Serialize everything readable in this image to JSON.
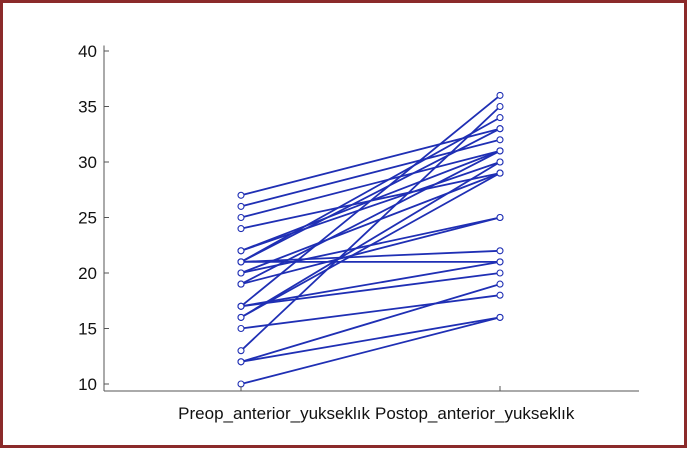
{
  "chart_data": {
    "type": "line",
    "categories": [
      "Preop_anterior_yukseklık",
      "Postop_anterior_yukseklık"
    ],
    "ylim": [
      9.5,
      40.5
    ],
    "yticks": [
      10,
      15,
      20,
      25,
      30,
      35,
      40
    ],
    "grid": false,
    "series_color": "#1f2fb4",
    "marker": "open-circle",
    "series": [
      {
        "values": [
          27,
          33
        ]
      },
      {
        "values": [
          26,
          32
        ]
      },
      {
        "values": [
          25,
          31
        ]
      },
      {
        "values": [
          24,
          29
        ]
      },
      {
        "values": [
          22,
          30
        ]
      },
      {
        "values": [
          22,
          31
        ]
      },
      {
        "values": [
          21,
          33
        ]
      },
      {
        "values": [
          21,
          34
        ]
      },
      {
        "values": [
          21,
          22
        ]
      },
      {
        "values": [
          21,
          21
        ]
      },
      {
        "values": [
          20,
          25
        ]
      },
      {
        "values": [
          20,
          29
        ]
      },
      {
        "values": [
          19,
          31
        ]
      },
      {
        "values": [
          19,
          25
        ]
      },
      {
        "values": [
          17,
          21
        ]
      },
      {
        "values": [
          17,
          20
        ]
      },
      {
        "values": [
          17,
          36
        ]
      },
      {
        "values": [
          16,
          30
        ]
      },
      {
        "values": [
          16,
          29
        ]
      },
      {
        "values": [
          15,
          18
        ]
      },
      {
        "values": [
          13,
          35
        ]
      },
      {
        "values": [
          12,
          19
        ]
      },
      {
        "values": [
          12,
          16
        ]
      },
      {
        "values": [
          10,
          16
        ]
      }
    ]
  }
}
